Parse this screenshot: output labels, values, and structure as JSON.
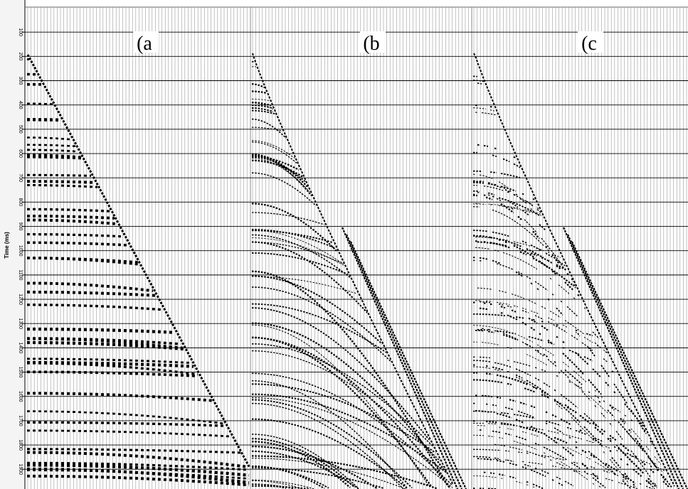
{
  "axis": {
    "label": "Time (ms)",
    "ticks": [
      100,
      200,
      300,
      400,
      500,
      600,
      700,
      800,
      900,
      1000,
      1100,
      1200,
      1300,
      1400,
      1500,
      1600,
      1700,
      1800,
      1900
    ]
  },
  "panels": [
    {
      "label": "(a"
    },
    {
      "label": "(b"
    },
    {
      "label": "(c"
    }
  ]
}
